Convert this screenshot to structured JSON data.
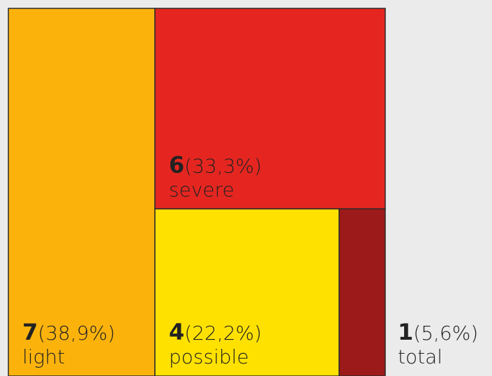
{
  "chart_data": {
    "type": "treemap",
    "categories": [
      "light",
      "severe",
      "possible",
      "total"
    ],
    "values": [
      7,
      6,
      4,
      1
    ],
    "share_labels": [
      "(38,9%)",
      "(33,3%)",
      "(22,2%)",
      "(5,6%)"
    ],
    "colors": [
      "#fbb30c",
      "#e52620",
      "#ffe100",
      "#9d1a1a"
    ]
  }
}
